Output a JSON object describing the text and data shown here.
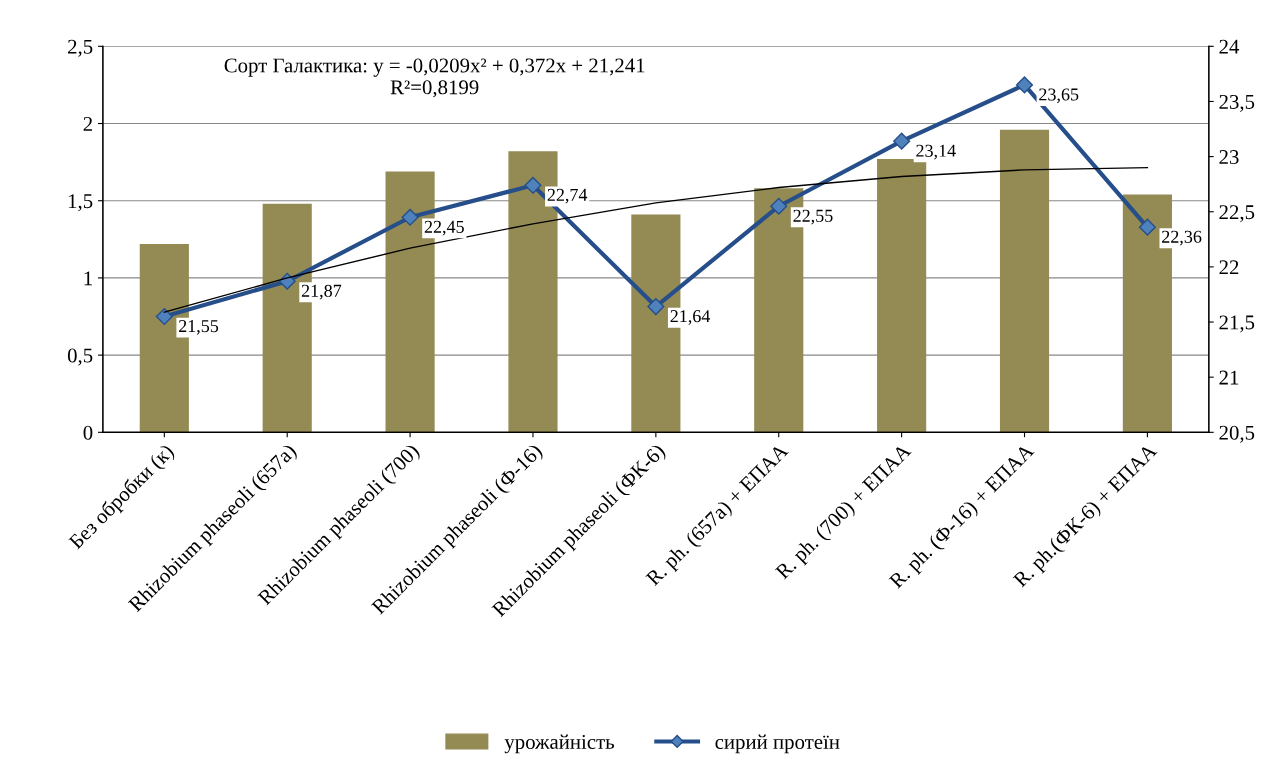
{
  "chart_data": {
    "type": "bar",
    "categories": [
      "Без обробки (к)",
      "Rhizobium phaseoli (657а)",
      "Rhizobium phaseoli (700)",
      "Rhizobium phaseoli (Ф-16)",
      "Rhizobium phaseoli (ФК-6)",
      "R. ph. (657а) + ЕПАА",
      "R. ph. (700) + ЕПАА",
      "R. ph. (Ф-16) + ЕПАА",
      "R. ph.(ФК-6) + ЕПАА"
    ],
    "series": [
      {
        "name": "урожайність",
        "color": "#948a54",
        "values": [
          1.22,
          1.48,
          1.69,
          1.82,
          1.41,
          1.58,
          1.77,
          1.96,
          1.54
        ]
      },
      {
        "name": "сирий протеїн",
        "type": "line",
        "axis": "y2",
        "color": "#254e8a",
        "marker": "diamond",
        "values": [
          21.55,
          21.87,
          22.45,
          22.74,
          21.64,
          22.55,
          23.14,
          23.65,
          22.36
        ],
        "value_labels": [
          "21,55",
          "21,87",
          "22,45",
          "22,74",
          "21,64",
          "22,55",
          "23,14",
          "23,65",
          "22,36"
        ]
      },
      {
        "type": "line",
        "axis": "y2",
        "color": "#000000",
        "marker": "none",
        "values": [
          21.59,
          21.9,
          22.17,
          22.39,
          22.58,
          22.72,
          22.82,
          22.88,
          22.9
        ]
      }
    ],
    "ylim": [
      0,
      2.5
    ],
    "yticks": [
      0,
      {
        "value": 0.5,
        "label": "0,5"
      },
      1,
      {
        "value": 1.5,
        "label": "1,5"
      },
      2,
      {
        "value": 2.5,
        "label": "2,5"
      }
    ],
    "y2lim": [
      20.5,
      24
    ],
    "y2ticks": [
      {
        "value": 20.5,
        "label": "20,5"
      },
      21,
      {
        "value": 21.5,
        "label": "21,5"
      },
      22,
      {
        "value": 22.5,
        "label": "22,5"
      },
      23,
      {
        "value": 23.5,
        "label": "23,5"
      },
      24
    ],
    "annotations": [
      "Сорт Галактика: y = -0,0209x² + 0,372x + 21,241\nR²=0,8199"
    ],
    "grid": "y",
    "legend": "bottom"
  }
}
